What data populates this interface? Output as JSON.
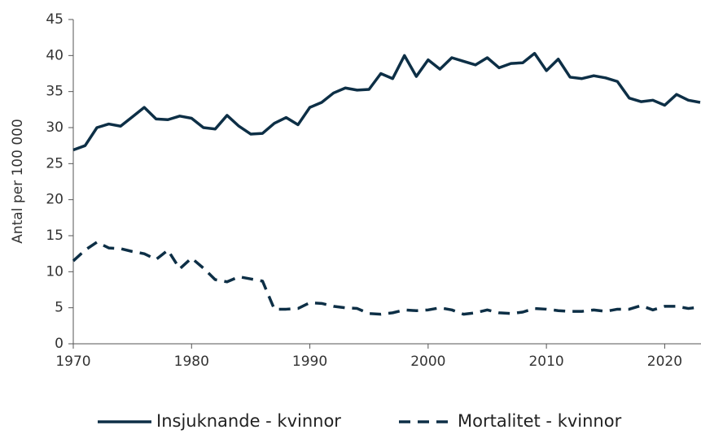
{
  "chart_data": {
    "type": "line",
    "y_label": "Antal per 100 000",
    "x": [
      1970,
      1971,
      1972,
      1973,
      1974,
      1975,
      1976,
      1977,
      1978,
      1979,
      1980,
      1981,
      1982,
      1983,
      1984,
      1985,
      1986,
      1987,
      1988,
      1989,
      1990,
      1991,
      1992,
      1993,
      1994,
      1995,
      1996,
      1997,
      1998,
      1999,
      2000,
      2001,
      2002,
      2003,
      2004,
      2005,
      2006,
      2007,
      2008,
      2009,
      2010,
      2011,
      2012,
      2013,
      2014,
      2015,
      2016,
      2017,
      2018,
      2019,
      2020,
      2021,
      2022,
      2023
    ],
    "series": [
      {
        "name": "Insjuknande - kvinnor",
        "color": "#0d2f46",
        "style": "solid",
        "values": [
          26.9,
          27.5,
          30.0,
          30.5,
          30.2,
          31.5,
          32.8,
          31.2,
          31.1,
          31.6,
          31.3,
          30.0,
          29.8,
          31.7,
          30.2,
          29.1,
          29.2,
          30.6,
          31.4,
          30.4,
          32.8,
          33.5,
          34.8,
          35.5,
          35.2,
          35.3,
          37.5,
          36.8,
          40.0,
          37.1,
          39.4,
          38.1,
          39.7,
          39.2,
          38.7,
          39.7,
          38.3,
          38.9,
          39.0,
          40.3,
          37.9,
          39.5,
          37.0,
          36.8,
          37.2,
          36.9,
          36.4,
          34.1,
          33.6,
          33.8,
          33.1,
          34.6,
          33.8,
          33.5
        ]
      },
      {
        "name": "Mortalitet - kvinnor",
        "color": "#0d2f46",
        "style": "dashed",
        "values": [
          11.5,
          13.0,
          14.1,
          13.3,
          13.2,
          12.8,
          12.5,
          11.7,
          13.0,
          10.4,
          11.9,
          10.5,
          8.9,
          8.6,
          9.3,
          9.0,
          8.7,
          4.8,
          4.8,
          4.9,
          5.7,
          5.6,
          5.2,
          5.0,
          4.9,
          4.2,
          4.1,
          4.3,
          4.7,
          4.6,
          4.7,
          5.0,
          4.7,
          4.1,
          4.3,
          4.7,
          4.3,
          4.2,
          4.4,
          4.9,
          4.8,
          4.6,
          4.5,
          4.5,
          4.7,
          4.5,
          4.8,
          4.8,
          5.3,
          4.7,
          5.2,
          5.2,
          4.9,
          5.1
        ]
      }
    ],
    "xlim": [
      1970,
      2023
    ],
    "xticks": [
      1970,
      1980,
      1990,
      2000,
      2010,
      2020
    ],
    "ylim": [
      0,
      45
    ],
    "yticks": [
      0,
      5,
      10,
      15,
      20,
      25,
      30,
      35,
      40,
      45
    ],
    "grid": false,
    "legend": "bottom"
  }
}
